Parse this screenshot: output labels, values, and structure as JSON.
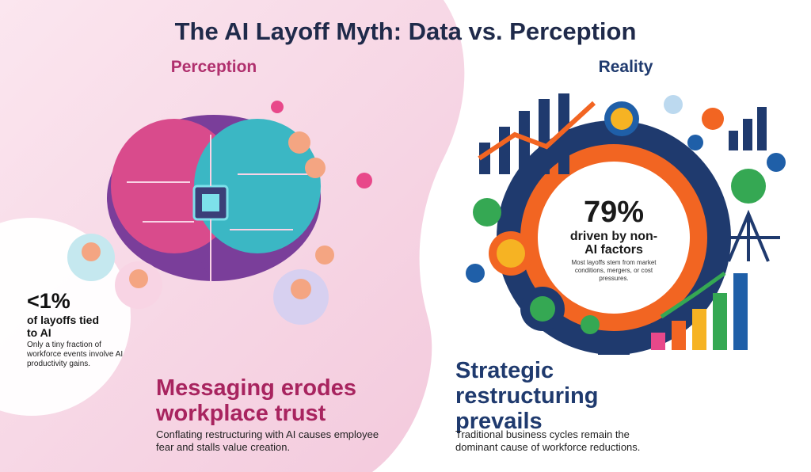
{
  "title": "The AI Layoff Myth: Data vs. Perception",
  "perception": {
    "heading": "Perception",
    "stat": "<1%",
    "stat_label": "of layoffs tied to AI",
    "stat_note": "Only a tiny fraction of workforce events involve AI productivity gains.",
    "headline": "Messaging erodes workplace trust",
    "body": "Conflating restructuring with AI causes employee fear and stalls value creation."
  },
  "reality": {
    "heading": "Reality",
    "stat": "79%",
    "stat_label": "driven by non-AI factors",
    "stat_note": "Most layoffs stem from market conditions, mergers, or cost pressures.",
    "headline": "Strategic restructuring prevails",
    "body": "Traditional business cycles remain the dominant cause of workforce reductions."
  }
}
